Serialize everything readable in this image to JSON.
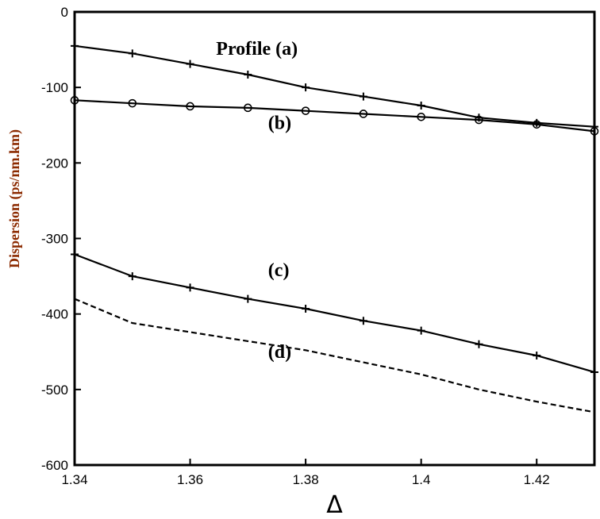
{
  "chart_data": {
    "type": "line",
    "xlabel": "Δ",
    "ylabel": "Dispersion (ps/nm.km)",
    "xlim": [
      1.34,
      1.43
    ],
    "ylim": [
      -600,
      0
    ],
    "x_ticks": [
      "1.34",
      "1.36",
      "1.38",
      "1.4",
      "1.42"
    ],
    "x_tick_values": [
      1.34,
      1.36,
      1.38,
      1.4,
      1.42
    ],
    "y_ticks": [
      "0",
      "-100",
      "-200",
      "-300",
      "-400",
      "-500",
      "-600"
    ],
    "y_tick_values": [
      0,
      -100,
      -200,
      -300,
      -400,
      -500,
      -600
    ],
    "grid": false,
    "series": [
      {
        "name": "a",
        "marker": "plus",
        "style": "solid",
        "x": [
          1.34,
          1.35,
          1.36,
          1.37,
          1.38,
          1.39,
          1.4,
          1.41,
          1.42,
          1.43
        ],
        "y": [
          -45,
          -55,
          -69,
          -83,
          -100,
          -112,
          -124,
          -140,
          -147,
          -152
        ]
      },
      {
        "name": "b",
        "marker": "circle",
        "style": "solid",
        "x": [
          1.34,
          1.35,
          1.36,
          1.37,
          1.38,
          1.39,
          1.4,
          1.41,
          1.42,
          1.43
        ],
        "y": [
          -117,
          -121,
          -125,
          -127,
          -131,
          -135,
          -139,
          -143,
          -149,
          -158
        ]
      },
      {
        "name": "c",
        "marker": "plus",
        "style": "solid",
        "x": [
          1.34,
          1.35,
          1.36,
          1.37,
          1.38,
          1.39,
          1.4,
          1.41,
          1.42,
          1.43
        ],
        "y": [
          -321,
          -350,
          -365,
          -380,
          -393,
          -409,
          -422,
          -440,
          -455,
          -477
        ]
      },
      {
        "name": "d",
        "marker": "none",
        "style": "dashed",
        "x": [
          1.34,
          1.35,
          1.36,
          1.37,
          1.38,
          1.39,
          1.4,
          1.41,
          1.42,
          1.43
        ],
        "y": [
          -380,
          -412,
          -424,
          -436,
          -448,
          -464,
          -480,
          -500,
          -516,
          -530
        ]
      }
    ],
    "annotations": [
      {
        "text": "Profile (a)",
        "x": 1.3645,
        "y": -57
      },
      {
        "text": "(b)",
        "x": 1.3735,
        "y": -155
      },
      {
        "text": "(c)",
        "x": 1.3735,
        "y": -350
      },
      {
        "text": "(d)",
        "x": 1.3735,
        "y": -458
      }
    ]
  }
}
